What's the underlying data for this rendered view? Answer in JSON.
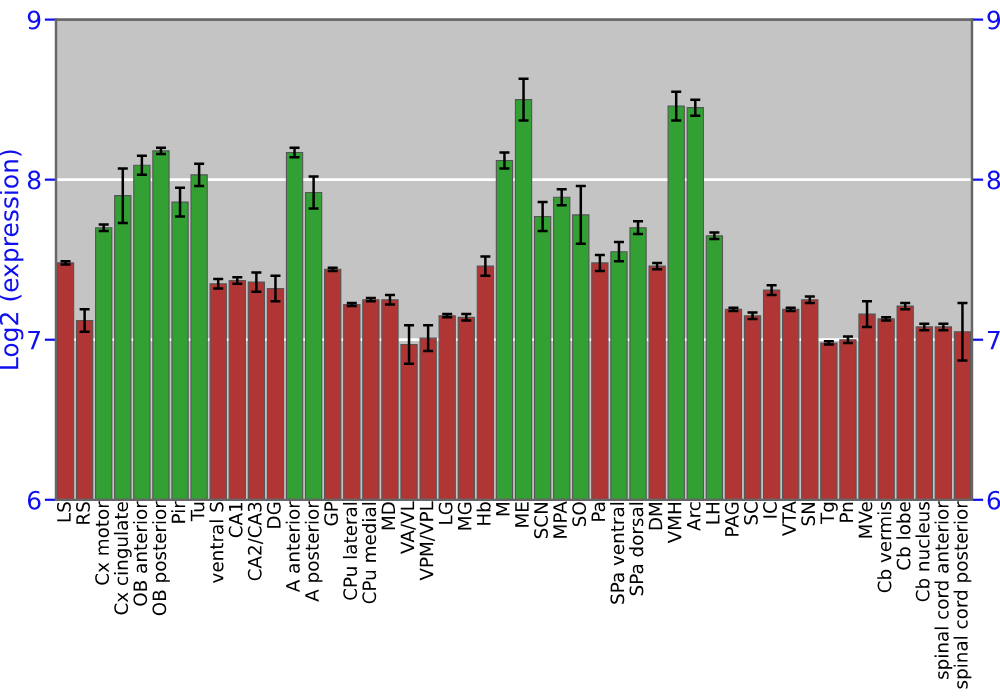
{
  "chart_data": {
    "type": "bar",
    "ylabel": "Log2 (expression)",
    "categories": [
      "LS",
      "RS",
      "Cx motor",
      "Cx cingulate",
      "OB anterior",
      "OB posterior",
      "Pir",
      "Tu",
      "ventral S",
      "CA1",
      "CA2/CA3",
      "DG",
      "A anterior",
      "A posterior",
      "GP",
      "CPu lateral",
      "CPu medial",
      "MD",
      "VA/VL",
      "VPM/VPL",
      "LG",
      "MG",
      "Hb",
      "M",
      "ME",
      "SCN",
      "MPA",
      "SO",
      "Pa",
      "SPa ventral",
      "SPa dorsal",
      "DM",
      "VMH",
      "Arc",
      "LH",
      "PAG",
      "SC",
      "IC",
      "VTA",
      "SN",
      "Tg",
      "Pn",
      "MVe",
      "Cb vermis",
      "Cb lobe",
      "Cb nucleus",
      "spinal cord anterior",
      "spinal cord posterior"
    ],
    "values": [
      7.48,
      7.12,
      7.7,
      7.9,
      8.09,
      8.18,
      7.86,
      8.03,
      7.35,
      7.37,
      7.36,
      7.32,
      8.17,
      7.92,
      7.44,
      7.22,
      7.25,
      7.25,
      6.97,
      7.01,
      7.15,
      7.14,
      7.46,
      8.12,
      8.5,
      7.77,
      7.89,
      7.78,
      7.48,
      7.55,
      7.7,
      7.46,
      8.46,
      8.45,
      7.65,
      7.19,
      7.15,
      7.31,
      7.19,
      7.25,
      6.98,
      7.0,
      7.16,
      7.13,
      7.21,
      7.08,
      7.08,
      7.05
    ],
    "errors": [
      0.01,
      0.07,
      0.02,
      0.17,
      0.06,
      0.02,
      0.09,
      0.07,
      0.03,
      0.02,
      0.06,
      0.08,
      0.03,
      0.1,
      0.01,
      0.01,
      0.01,
      0.03,
      0.12,
      0.08,
      0.01,
      0.02,
      0.06,
      0.05,
      0.13,
      0.09,
      0.05,
      0.18,
      0.05,
      0.06,
      0.04,
      0.02,
      0.09,
      0.05,
      0.02,
      0.01,
      0.02,
      0.03,
      0.01,
      0.02,
      0.01,
      0.02,
      0.08,
      0.01,
      0.02,
      0.02,
      0.02,
      0.18
    ],
    "colors": [
      "#b03636",
      "#b03636",
      "#33a033",
      "#33a033",
      "#33a033",
      "#33a033",
      "#33a033",
      "#33a033",
      "#b03636",
      "#b03636",
      "#b03636",
      "#b03636",
      "#33a033",
      "#33a033",
      "#b03636",
      "#b03636",
      "#b03636",
      "#b03636",
      "#b03636",
      "#b03636",
      "#b03636",
      "#b03636",
      "#b03636",
      "#33a033",
      "#33a033",
      "#33a033",
      "#33a033",
      "#33a033",
      "#b03636",
      "#33a033",
      "#33a033",
      "#b03636",
      "#33a033",
      "#33a033",
      "#33a033",
      "#b03636",
      "#b03636",
      "#b03636",
      "#b03636",
      "#b03636",
      "#b03636",
      "#b03636",
      "#b03636",
      "#b03636",
      "#b03636",
      "#b03636",
      "#b03636",
      "#b03636"
    ],
    "ylim": [
      6,
      9
    ],
    "yticks": [
      6,
      7,
      8,
      9
    ],
    "y2lim": [
      6,
      9
    ],
    "y2ticks": [
      6,
      7,
      8,
      9
    ],
    "grid": "y"
  }
}
